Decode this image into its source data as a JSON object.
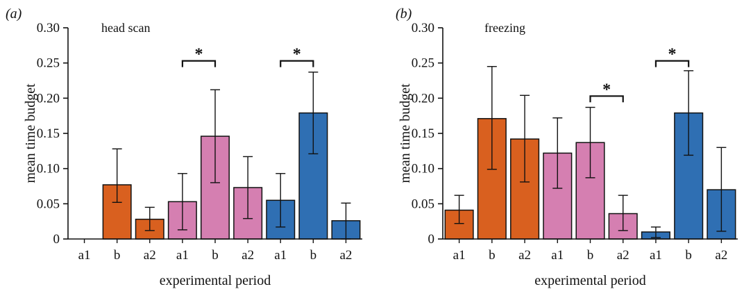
{
  "colors": {
    "orange": "#d9601f",
    "pink": "#d57fb1",
    "blue": "#2f6fb3",
    "ink": "#111111"
  },
  "chart_data": [
    {
      "type": "bar",
      "panel_tag": "(a)",
      "annotation": "head scan",
      "xlabel": "experimental period",
      "ylabel": "mean time budget",
      "ylim": [
        0,
        0.3
      ],
      "yticks": [
        0,
        0.05,
        0.1,
        0.15,
        0.2,
        0.25,
        0.3
      ],
      "ytick_labels": [
        "0",
        "0.05",
        "0.10",
        "0.15",
        "0.20",
        "0.25",
        "0.30"
      ],
      "categories": [
        "a1",
        "b",
        "a2",
        "a1",
        "b",
        "a2",
        "a1",
        "b",
        "a2"
      ],
      "groups": [
        "orange",
        "orange",
        "orange",
        "pink",
        "pink",
        "pink",
        "blue",
        "blue",
        "blue"
      ],
      "values": [
        0,
        0.077,
        0.028,
        0.053,
        0.146,
        0.073,
        0.055,
        0.179,
        0.026
      ],
      "err_low": [
        0,
        0.052,
        0.012,
        0.013,
        0.08,
        0.029,
        0.017,
        0.121,
        0.0
      ],
      "err_high": [
        0,
        0.128,
        0.045,
        0.093,
        0.212,
        0.117,
        0.093,
        0.237,
        0.051
      ],
      "significance": [
        {
          "from": 3,
          "to": 4,
          "label": "*",
          "y": 0.253
        },
        {
          "from": 6,
          "to": 7,
          "label": "*",
          "y": 0.253
        }
      ]
    },
    {
      "type": "bar",
      "panel_tag": "(b)",
      "annotation": "freezing",
      "xlabel": "experimental period",
      "ylabel": "mean time budget",
      "ylim": [
        0,
        0.3
      ],
      "yticks": [
        0,
        0.05,
        0.1,
        0.15,
        0.2,
        0.25,
        0.3
      ],
      "ytick_labels": [
        "0",
        "0.05",
        "0.10",
        "0.15",
        "0.20",
        "0.25",
        "0.30"
      ],
      "categories": [
        "a1",
        "b",
        "a2",
        "a1",
        "b",
        "a2",
        "a1",
        "b",
        "a2"
      ],
      "groups": [
        "orange",
        "orange",
        "orange",
        "pink",
        "pink",
        "pink",
        "blue",
        "blue",
        "blue"
      ],
      "values": [
        0.041,
        0.171,
        0.142,
        0.122,
        0.137,
        0.036,
        0.01,
        0.179,
        0.07
      ],
      "err_low": [
        0.022,
        0.099,
        0.081,
        0.072,
        0.087,
        0.012,
        0.002,
        0.119,
        0.011
      ],
      "err_high": [
        0.062,
        0.245,
        0.204,
        0.172,
        0.187,
        0.062,
        0.017,
        0.239,
        0.13
      ],
      "significance": [
        {
          "from": 4,
          "to": 5,
          "label": "*",
          "y": 0.203
        },
        {
          "from": 6,
          "to": 7,
          "label": "*",
          "y": 0.253
        }
      ]
    }
  ]
}
